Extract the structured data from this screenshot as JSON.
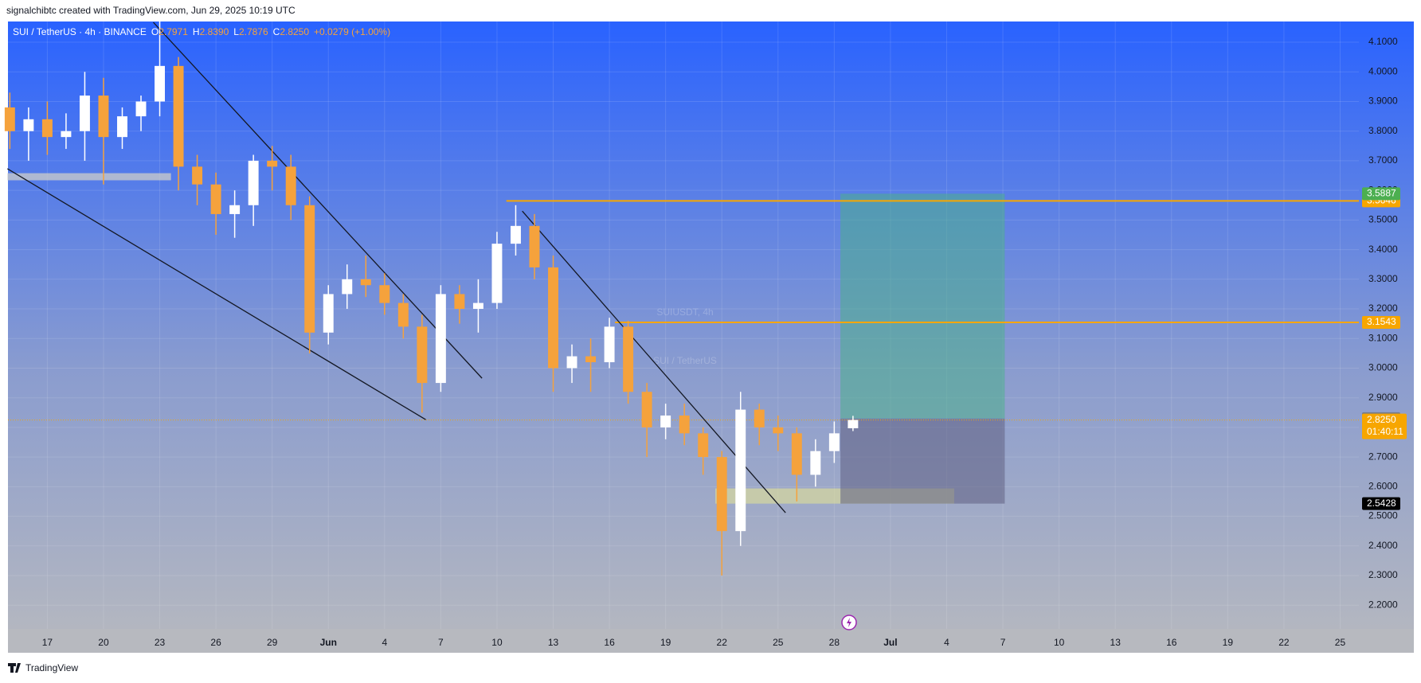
{
  "header": "signalchibtc created with TradingView.com, Jun 29, 2025 10:19 UTC",
  "footer": "TradingView",
  "chart_data": {
    "type": "candlestick",
    "legend": {
      "symbol": "SUI / TetherUS · 4h · BINANCE",
      "ohlc": [
        {
          "label": "O",
          "value": "2.7971"
        },
        {
          "label": "H",
          "value": "2.8390"
        },
        {
          "label": "L",
          "value": "2.7876"
        },
        {
          "label": "C",
          "value": "2.8250"
        }
      ],
      "change": "+0.0279 (+1.00%)"
    },
    "watermark": {
      "title": "SUIUSDT, 4h",
      "subtitle": "SUI / TetherUS"
    },
    "up_color": "#ffffff",
    "down_color": "#f5a23c",
    "x": [
      -2,
      -1,
      0,
      1,
      2,
      3,
      4,
      5,
      6,
      7,
      8,
      9,
      10,
      11,
      12,
      13,
      14,
      15,
      16,
      17,
      18,
      19,
      20,
      21,
      22,
      23,
      24,
      25,
      26,
      27,
      28,
      29,
      30,
      31,
      32,
      33,
      34,
      35,
      36,
      37,
      38,
      39,
      40,
      41,
      42,
      43
    ],
    "open": [
      3.88,
      3.8,
      3.84,
      3.78,
      3.8,
      3.92,
      3.78,
      3.85,
      3.9,
      4.02,
      3.68,
      3.62,
      3.52,
      3.55,
      3.7,
      3.68,
      3.55,
      3.12,
      3.25,
      3.3,
      3.28,
      3.22,
      3.14,
      2.95,
      3.25,
      3.2,
      3.22,
      3.42,
      3.48,
      3.34,
      3.0,
      3.04,
      3.02,
      3.14,
      2.92,
      2.8,
      2.84,
      2.78,
      2.7,
      2.45,
      2.86,
      2.8,
      2.78,
      2.64,
      2.72,
      2.7971
    ],
    "high": [
      3.93,
      3.88,
      3.9,
      3.86,
      4.0,
      3.98,
      3.88,
      3.92,
      4.17,
      4.05,
      3.72,
      3.66,
      3.6,
      3.72,
      3.75,
      3.72,
      3.58,
      3.28,
      3.35,
      3.38,
      3.32,
      3.25,
      3.18,
      3.28,
      3.28,
      3.3,
      3.46,
      3.55,
      3.52,
      3.38,
      3.08,
      3.1,
      3.17,
      3.16,
      2.95,
      2.88,
      2.88,
      2.8,
      2.72,
      2.92,
      2.88,
      2.84,
      2.8,
      2.76,
      2.82,
      2.839
    ],
    "low": [
      3.74,
      3.7,
      3.72,
      3.74,
      3.7,
      3.62,
      3.74,
      3.8,
      3.85,
      3.6,
      3.55,
      3.45,
      3.44,
      3.48,
      3.6,
      3.5,
      3.05,
      3.08,
      3.2,
      3.24,
      3.18,
      3.1,
      2.85,
      2.92,
      3.15,
      3.12,
      3.2,
      3.38,
      3.3,
      2.92,
      2.95,
      2.92,
      3.0,
      2.88,
      2.7,
      2.76,
      2.74,
      2.64,
      2.3,
      2.4,
      2.74,
      2.72,
      2.55,
      2.6,
      2.68,
      2.7876
    ],
    "close": [
      3.8,
      3.84,
      3.78,
      3.8,
      3.92,
      3.78,
      3.85,
      3.9,
      4.02,
      3.68,
      3.62,
      3.52,
      3.55,
      3.7,
      3.68,
      3.55,
      3.12,
      3.25,
      3.3,
      3.28,
      3.22,
      3.14,
      2.95,
      3.25,
      3.2,
      3.22,
      3.42,
      3.48,
      3.34,
      3.0,
      3.04,
      3.02,
      3.14,
      2.92,
      2.8,
      2.84,
      2.78,
      2.7,
      2.45,
      2.86,
      2.8,
      2.78,
      2.64,
      2.72,
      2.78,
      2.825
    ],
    "xlim": [
      -2.1,
      70
    ],
    "xticks": [
      {
        "value": 0,
        "label": "17"
      },
      {
        "value": 3,
        "label": "20"
      },
      {
        "value": 6,
        "label": "23"
      },
      {
        "value": 9,
        "label": "26"
      },
      {
        "value": 12,
        "label": "29"
      },
      {
        "value": 15,
        "label": "Jun"
      },
      {
        "value": 18,
        "label": "4"
      },
      {
        "value": 21,
        "label": "7"
      },
      {
        "value": 24,
        "label": "10"
      },
      {
        "value": 27,
        "label": "13"
      },
      {
        "value": 30,
        "label": "16"
      },
      {
        "value": 33,
        "label": "19"
      },
      {
        "value": 36,
        "label": "22"
      },
      {
        "value": 39,
        "label": "25"
      },
      {
        "value": 42,
        "label": "28"
      },
      {
        "value": 45,
        "label": "Jul"
      },
      {
        "value": 48,
        "label": "4"
      },
      {
        "value": 51,
        "label": "7"
      },
      {
        "value": 54,
        "label": "10"
      },
      {
        "value": 57,
        "label": "13"
      },
      {
        "value": 60,
        "label": "16"
      },
      {
        "value": 63,
        "label": "19"
      },
      {
        "value": 66,
        "label": "22"
      },
      {
        "value": 69,
        "label": "25"
      }
    ],
    "ylim": [
      2.12,
      4.17
    ],
    "yticks": [
      {
        "value": 2.2,
        "label": "2.2000"
      },
      {
        "value": 2.3,
        "label": "2.3000"
      },
      {
        "value": 2.4,
        "label": "2.4000"
      },
      {
        "value": 2.5,
        "label": "2.5000"
      },
      {
        "value": 2.6,
        "label": "2.6000"
      },
      {
        "value": 2.7,
        "label": "2.7000"
      },
      {
        "value": 2.8,
        "label": "2.8000"
      },
      {
        "value": 2.9,
        "label": "2.9000"
      },
      {
        "value": 3.0,
        "label": "3.0000"
      },
      {
        "value": 3.1,
        "label": "3.1000"
      },
      {
        "value": 3.2,
        "label": "3.2000"
      },
      {
        "value": 3.3,
        "label": "3.3000"
      },
      {
        "value": 3.4,
        "label": "3.4000"
      },
      {
        "value": 3.5,
        "label": "3.5000"
      },
      {
        "value": 3.6,
        "label": "3.6000"
      },
      {
        "value": 3.7,
        "label": "3.7000"
      },
      {
        "value": 3.8,
        "label": "3.8000"
      },
      {
        "value": 3.9,
        "label": "3.9000"
      },
      {
        "value": 4.0,
        "label": "4.0000"
      },
      {
        "value": 4.1,
        "label": "4.1000"
      }
    ],
    "grid": true,
    "trendlines": [
      {
        "x": [
          -2.13,
          20.2
        ],
        "y": [
          3.673,
          2.826
        ]
      },
      {
        "x": [
          5.66,
          23.2
        ],
        "y": [
          4.167,
          2.966
        ]
      },
      {
        "x": [
          25.35,
          39.4
        ],
        "y": [
          3.53,
          2.512
        ]
      }
    ],
    "hlines": [
      {
        "value": 3.5646,
        "from": 24.5,
        "color": "#f7a600"
      },
      {
        "value": 3.1543,
        "from": 30.3,
        "color": "#f7a600"
      }
    ],
    "zones": [
      {
        "x": [
          -2.13,
          6.6
        ],
        "y": [
          3.634,
          3.658
        ],
        "color": "rgba(205,205,200,0.75)"
      },
      {
        "x": [
          35.65,
          48.4
        ],
        "y": [
          2.5428,
          2.594
        ],
        "color": "rgba(225,225,150,0.6)"
      }
    ],
    "position": {
      "x": [
        42.33,
        51.1
      ],
      "target": 3.5887,
      "entry": 2.8298,
      "stop": 2.5428,
      "target_color": "#4caf50",
      "entry_color": "#787b86",
      "stop_color": "#000000"
    },
    "last_price": {
      "value": 2.825,
      "label": "2.8250",
      "countdown": "01:40:11",
      "color": "#f7a600"
    }
  }
}
